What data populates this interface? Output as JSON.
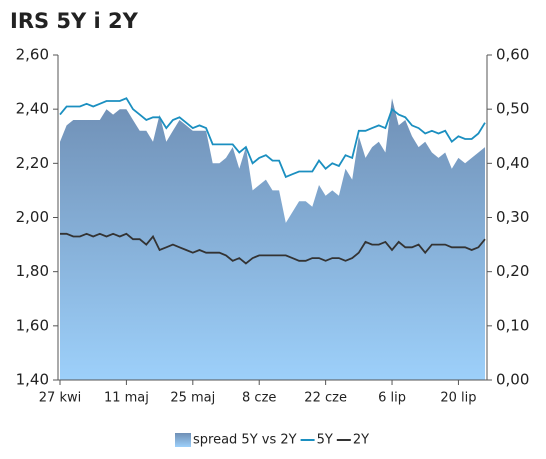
{
  "chart_data": {
    "type": "line",
    "title": "IRS 5Y i 2Y",
    "categories": [
      "27 kwi",
      null,
      null,
      null,
      null,
      null,
      null,
      null,
      null,
      null,
      "11 maj",
      null,
      null,
      null,
      null,
      null,
      null,
      null,
      null,
      null,
      "25 maj",
      null,
      null,
      null,
      null,
      null,
      null,
      null,
      null,
      null,
      "8 cze",
      null,
      null,
      null,
      null,
      null,
      null,
      null,
      null,
      null,
      "22 cze",
      null,
      null,
      null,
      null,
      null,
      null,
      null,
      null,
      null,
      "6 lip",
      null,
      null,
      null,
      null,
      null,
      null,
      null,
      null,
      null,
      "20 lip",
      null,
      null,
      null,
      null
    ],
    "series": [
      {
        "name": "spread 5Y vs 2Y",
        "type": "area",
        "axis": "y2",
        "color": "#7a9cc4",
        "values": [
          0.44,
          0.47,
          0.48,
          0.48,
          0.48,
          0.48,
          0.48,
          0.5,
          0.49,
          0.5,
          0.5,
          0.48,
          0.46,
          0.46,
          0.44,
          0.49,
          0.44,
          0.46,
          0.48,
          0.47,
          0.46,
          0.46,
          0.46,
          0.4,
          0.4,
          0.41,
          0.43,
          0.39,
          0.43,
          0.35,
          0.36,
          0.37,
          0.35,
          0.35,
          0.29,
          0.31,
          0.33,
          0.33,
          0.32,
          0.36,
          0.34,
          0.35,
          0.34,
          0.39,
          0.37,
          0.45,
          0.41,
          0.43,
          0.44,
          0.42,
          0.52,
          0.47,
          0.48,
          0.45,
          0.43,
          0.44,
          0.42,
          0.41,
          0.42,
          0.39,
          0.41,
          0.4,
          0.41,
          0.42,
          0.43
        ]
      },
      {
        "name": "5Y",
        "type": "line",
        "color": "#1b8fc0",
        "values": [
          2.38,
          2.41,
          2.41,
          2.41,
          2.42,
          2.41,
          2.42,
          2.43,
          2.43,
          2.43,
          2.44,
          2.4,
          2.38,
          2.36,
          2.37,
          2.37,
          2.33,
          2.36,
          2.37,
          2.35,
          2.33,
          2.34,
          2.33,
          2.27,
          2.27,
          2.27,
          2.27,
          2.24,
          2.26,
          2.2,
          2.22,
          2.23,
          2.21,
          2.21,
          2.15,
          2.16,
          2.17,
          2.17,
          2.17,
          2.21,
          2.18,
          2.2,
          2.19,
          2.23,
          2.22,
          2.32,
          2.32,
          2.33,
          2.34,
          2.33,
          2.4,
          2.38,
          2.37,
          2.34,
          2.33,
          2.31,
          2.32,
          2.31,
          2.32,
          2.28,
          2.3,
          2.29,
          2.29,
          2.31,
          2.35
        ]
      },
      {
        "name": "2Y",
        "type": "line",
        "color": "#333333",
        "values": [
          1.94,
          1.94,
          1.93,
          1.93,
          1.94,
          1.93,
          1.94,
          1.93,
          1.94,
          1.93,
          1.94,
          1.92,
          1.92,
          1.9,
          1.93,
          1.88,
          1.89,
          1.9,
          1.89,
          1.88,
          1.87,
          1.88,
          1.87,
          1.87,
          1.87,
          1.86,
          1.84,
          1.85,
          1.83,
          1.85,
          1.86,
          1.86,
          1.86,
          1.86,
          1.86,
          1.85,
          1.84,
          1.84,
          1.85,
          1.85,
          1.84,
          1.85,
          1.85,
          1.84,
          1.85,
          1.87,
          1.91,
          1.9,
          1.9,
          1.91,
          1.88,
          1.91,
          1.89,
          1.89,
          1.9,
          1.87,
          1.9,
          1.9,
          1.9,
          1.89,
          1.89,
          1.89,
          1.88,
          1.89,
          1.92
        ]
      }
    ],
    "ylim": [
      1.4,
      2.6
    ],
    "yticks": [
      {
        "value": 1.4,
        "label": "1,40"
      },
      {
        "value": 1.6,
        "label": "1,60"
      },
      {
        "value": 1.8,
        "label": "1,80"
      },
      {
        "value": 2.0,
        "label": "2,00"
      },
      {
        "value": 2.2,
        "label": "2,20"
      },
      {
        "value": 2.4,
        "label": "2,40"
      },
      {
        "value": 2.6,
        "label": "2,60"
      }
    ],
    "y2lim": [
      0,
      0.6
    ],
    "y2ticks": [
      {
        "value": 0,
        "label": "0,00"
      },
      {
        "value": 0.1,
        "label": "0,10"
      },
      {
        "value": 0.2,
        "label": "0,20"
      },
      {
        "value": 0.3,
        "label": "0,30"
      },
      {
        "value": 0.4,
        "label": "0,40"
      },
      {
        "value": 0.5,
        "label": "0,50"
      },
      {
        "value": 0.6,
        "label": "0,60"
      }
    ],
    "legend": "bottom"
  }
}
